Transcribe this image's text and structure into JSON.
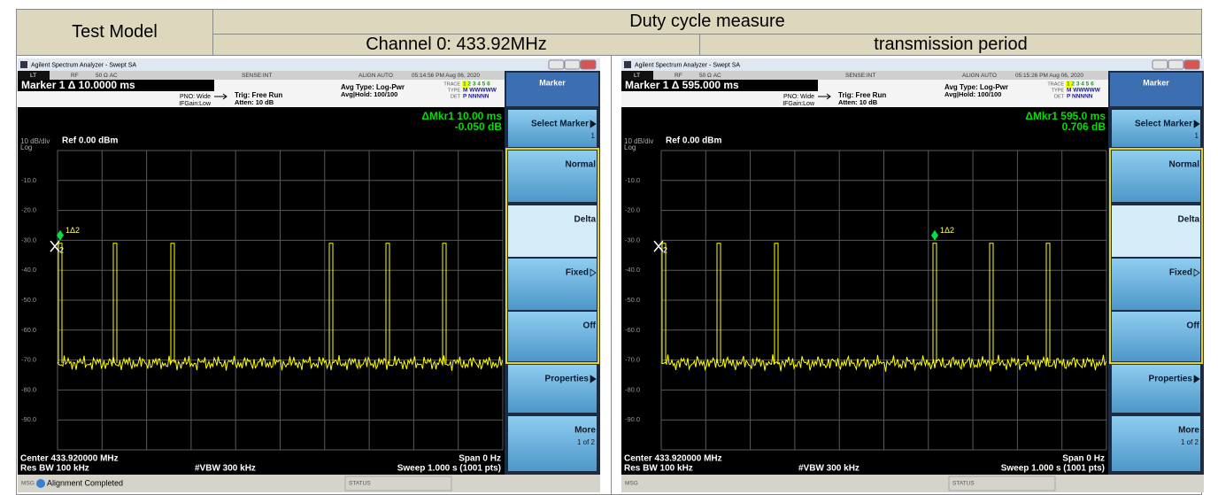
{
  "header": {
    "test_model": "Test Model",
    "duty_cycle": "Duty cycle measure",
    "channel": "Channel 0: 433.92MHz",
    "period": "transmission period"
  },
  "panels": [
    {
      "window_title": "Agilent Spectrum Analyzer - Swept SA",
      "status": [
        "LT",
        "RF",
        "50 Ω  AC",
        "SENSE:INT",
        "ALIGN AUTO",
        "05:14:56 PM Aug 06, 2020"
      ],
      "marker": "Marker 1 Δ 10.0000 ms",
      "pno": "PNO: Wide",
      "ifgain": "IFGain:Low",
      "trig": "Trig: Free Run",
      "atten": "Atten: 10 dB",
      "avg_type": "Avg Type: Log-Pwr",
      "avg_hold": "Avg|Hold: 100/100",
      "trace": [
        "TRACE",
        "TYPE",
        "DET"
      ],
      "trace_values": [
        "1 2 3 4 5 6",
        "M WWWWW",
        "P NNNNN"
      ],
      "delta_marker": "ΔMkr1 10.00 ms",
      "delta_value": "-0.050 dB",
      "scale": "10 dB/div",
      "log": "Log",
      "ref": "Ref 0.00 dBm",
      "y_labels": [
        "-10.0",
        "-20.0",
        "-30.0",
        "-40.0",
        "-50.0",
        "-60.0",
        "-70.0",
        "-80.0",
        "-90.0"
      ],
      "marker_labels": [
        "1Δ2",
        "2"
      ],
      "center": "Center 433.920000 MHz",
      "res_bw": "Res BW 100 kHz",
      "vbw": "#VBW 300 kHz",
      "span": "Span 0 Hz",
      "sweep": "Sweep  1.000 s (1001 pts)",
      "softkeys": {
        "title": "Marker",
        "keys": [
          {
            "label": "Select Marker",
            "sub": "1"
          },
          {
            "label": "Normal"
          },
          {
            "label": "Delta"
          },
          {
            "label": "Fixed"
          },
          {
            "label": "Off"
          },
          {
            "label": "Properties"
          },
          {
            "label": "More",
            "sub": "1 of 2"
          }
        ]
      },
      "msg": "MSG",
      "msg_text": "Alignment Completed",
      "status_label": "STATUS"
    },
    {
      "window_title": "Agilent Spectrum Analyzer - Swept SA",
      "status": [
        "LT",
        "RF",
        "50 Ω  AC",
        "SENSE:INT",
        "ALIGN AUTO",
        "05:15:26 PM Aug 06, 2020"
      ],
      "marker": "Marker 1 Δ 595.000 ms",
      "pno": "PNO: Wide",
      "ifgain": "IFGain:Low",
      "trig": "Trig: Free Run",
      "atten": "Atten: 10 dB",
      "avg_type": "Avg Type: Log-Pwr",
      "avg_hold": "Avg|Hold: 100/100",
      "trace": [
        "TRACE",
        "TYPE",
        "DET"
      ],
      "trace_values": [
        "1 2 3 4 5 6",
        "M WWWWW",
        "P NNNNN"
      ],
      "delta_marker": "ΔMkr1 595.0 ms",
      "delta_value": "0.706 dB",
      "scale": "10 dB/div",
      "log": "Log",
      "ref": "Ref 0.00 dBm",
      "y_labels": [
        "-10.0",
        "-20.0",
        "-30.0",
        "-40.0",
        "-50.0",
        "-60.0",
        "-70.0",
        "-80.0",
        "-90.0"
      ],
      "marker_labels": [
        "1Δ2",
        "2"
      ],
      "center": "Center 433.920000 MHz",
      "res_bw": "Res BW 100 kHz",
      "vbw": "#VBW 300 kHz",
      "span": "Span 0 Hz",
      "sweep": "Sweep  1.000 s (1001 pts)",
      "softkeys": {
        "title": "Marker",
        "keys": [
          {
            "label": "Select Marker",
            "sub": "1"
          },
          {
            "label": "Normal"
          },
          {
            "label": "Delta"
          },
          {
            "label": "Fixed"
          },
          {
            "label": "Off"
          },
          {
            "label": "Properties"
          },
          {
            "label": "More",
            "sub": "1 of 2"
          }
        ]
      },
      "msg": "MSG",
      "status_label": "STATUS"
    }
  ]
}
